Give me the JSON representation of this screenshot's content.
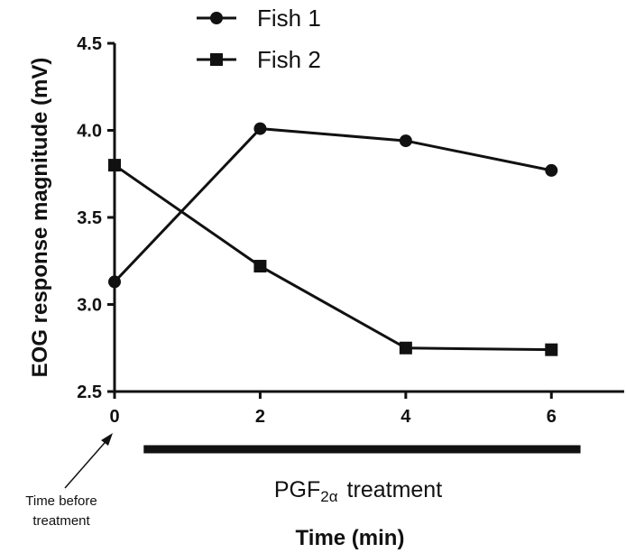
{
  "chart_data": {
    "type": "line",
    "xlabel": "Time (min)",
    "ylabel": "EOG response magnitude (mV)",
    "x": [
      0,
      2,
      4,
      6
    ],
    "xticks": [
      "0",
      "2",
      "4",
      "6"
    ],
    "yticks": [
      "2.5",
      "3.0",
      "3.5",
      "4.0",
      "4.5"
    ],
    "xlim": [
      0,
      7
    ],
    "ylim": [
      2.5,
      4.5
    ],
    "grid": false,
    "legend_position": "top",
    "series": [
      {
        "name": "Fish 1",
        "marker": "circle",
        "values": [
          3.13,
          4.01,
          3.94,
          3.77
        ]
      },
      {
        "name": "Fish 2",
        "marker": "square",
        "values": [
          3.8,
          3.22,
          2.75,
          2.74
        ]
      }
    ],
    "annotations": {
      "treatment_label_main": "PGF",
      "treatment_label_sub": "2α",
      "treatment_label_rest": "treatment",
      "treatment_range": [
        0.4,
        6.4
      ],
      "note_line1": "Time before",
      "note_line2": "treatment"
    }
  }
}
